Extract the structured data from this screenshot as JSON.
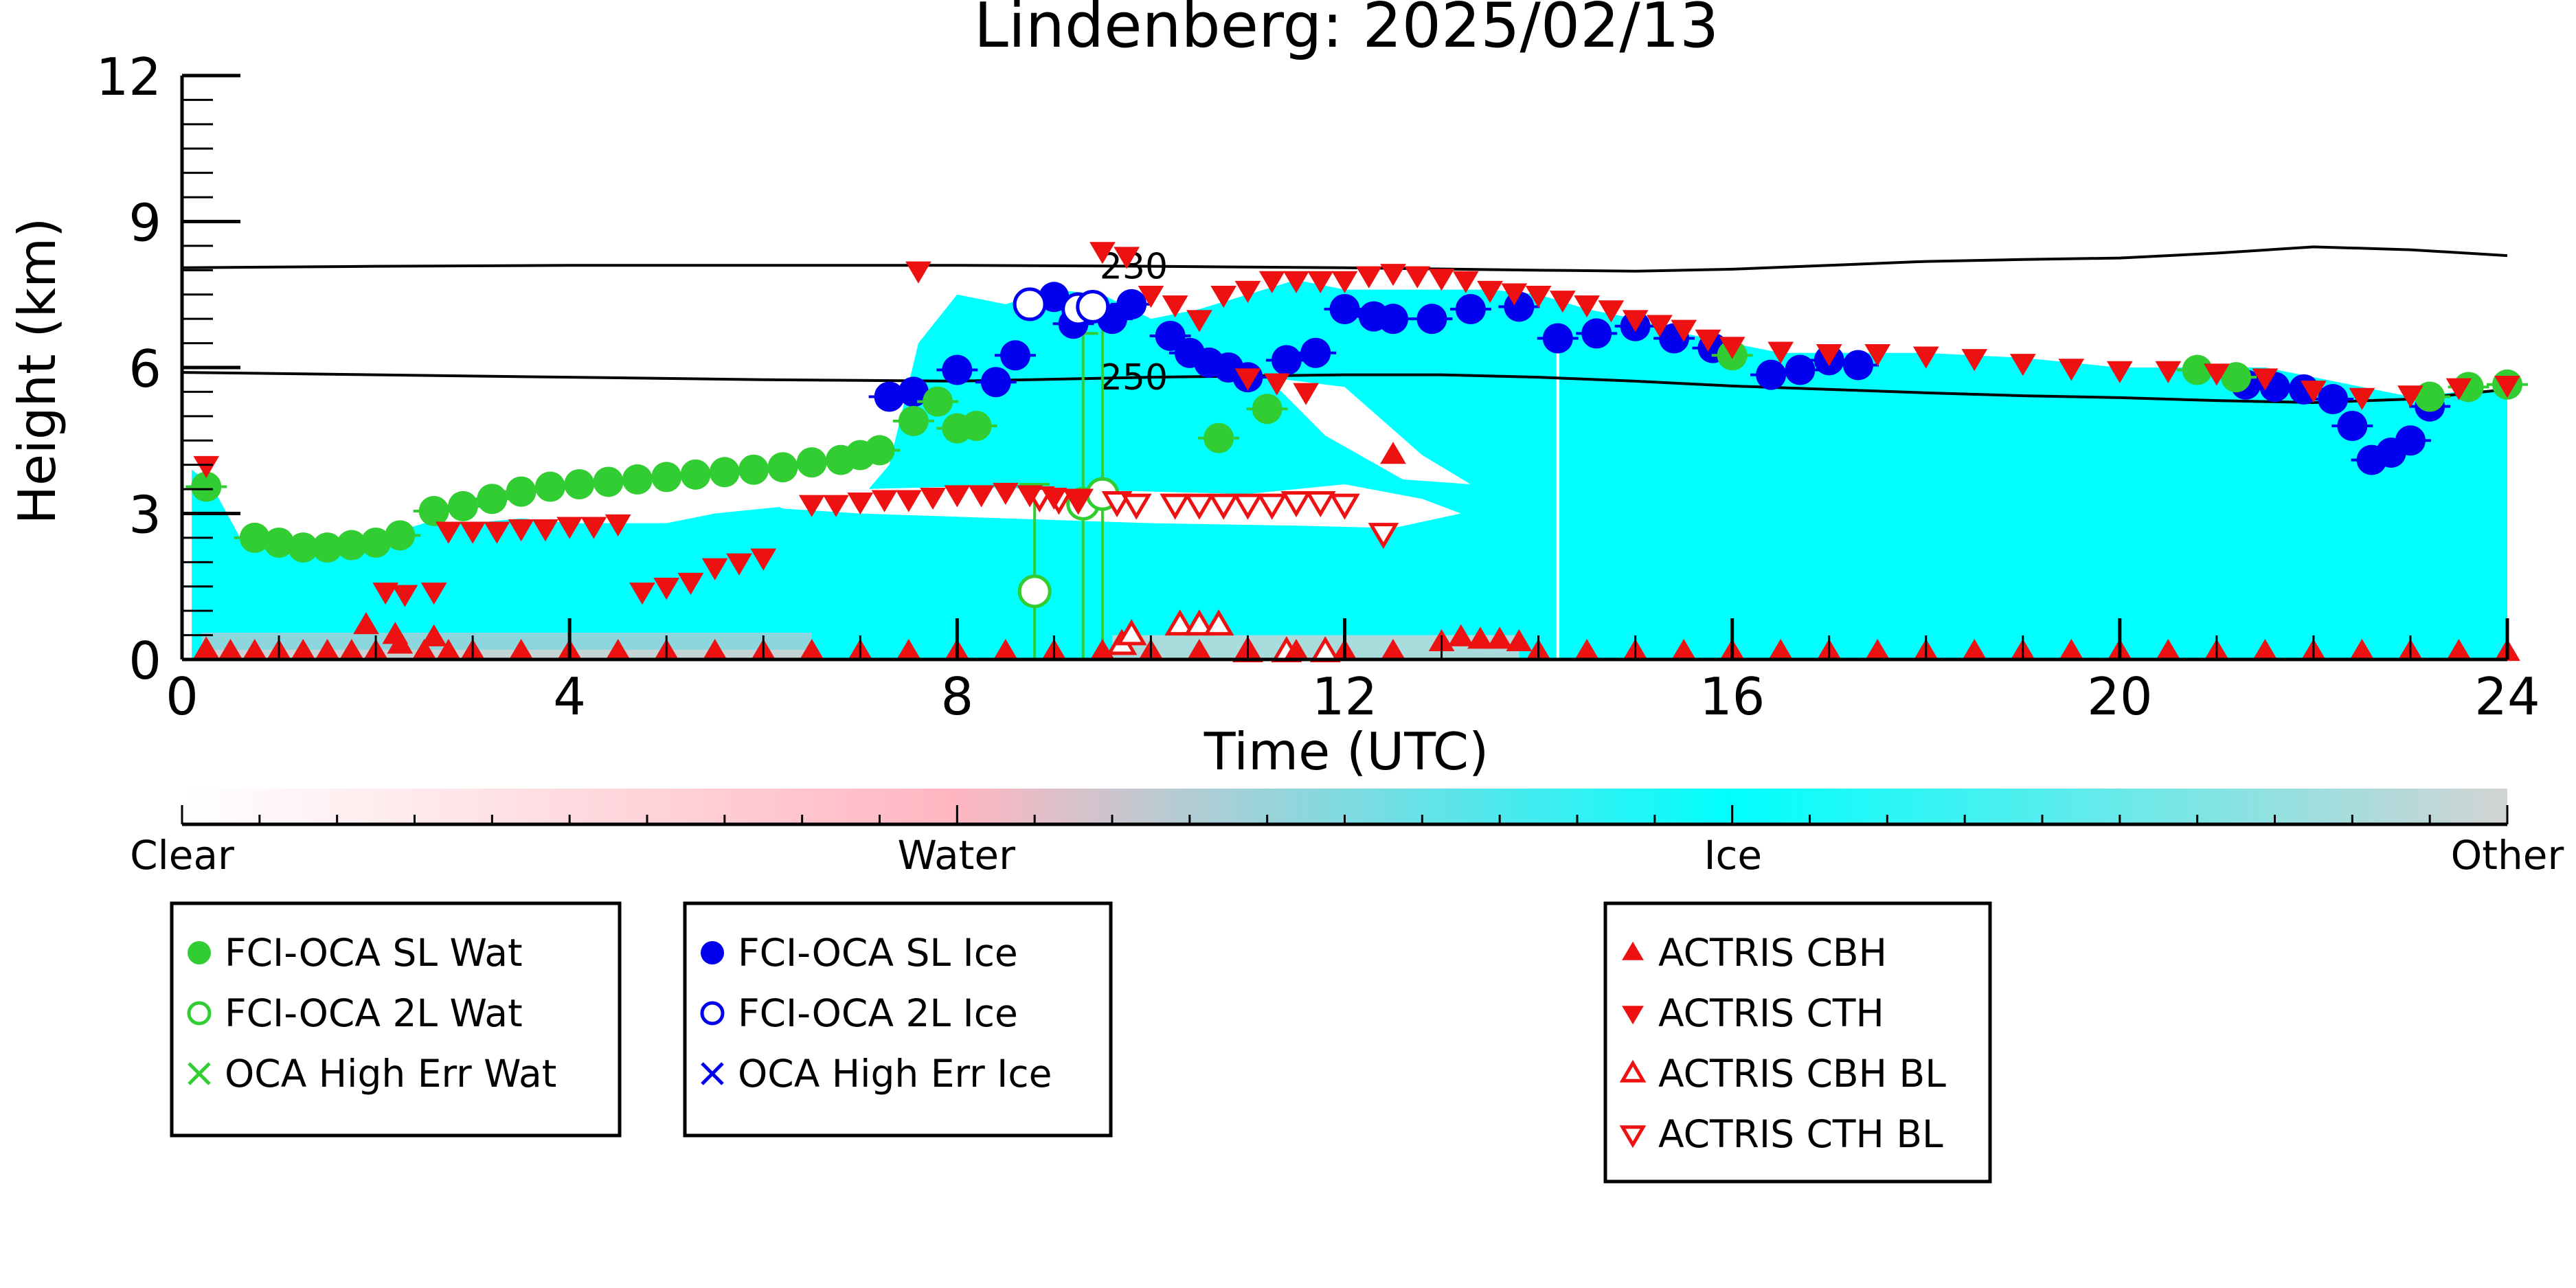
{
  "chart_data": {
    "type": "scatter",
    "title": "Lindenberg: 2025/02/13",
    "xlabel": "Time (UTC)",
    "ylabel": "Height (km)",
    "xlim": [
      0,
      24
    ],
    "ylim": [
      0,
      12
    ],
    "x_ticks": [
      0,
      4,
      8,
      12,
      16,
      20,
      24
    ],
    "y_ticks": [
      0,
      3,
      6,
      9,
      12
    ],
    "x_tick_labels": [
      "0",
      "4",
      "8",
      "12",
      "16",
      "20",
      "24"
    ],
    "y_tick_labels": [
      "0",
      "3",
      "6",
      "9",
      "12"
    ],
    "grid": false,
    "colors": {
      "sl_wat": "#32cd32",
      "sl_ice": "#0000ee",
      "actris": "#ee1111",
      "ice_phase": "#00ffff",
      "water_phase": "#ffb6c1",
      "other_phase": "#d3d3d3",
      "clear_phase": "#ffffff"
    },
    "contours": [
      {
        "label": "230",
        "label_x": 9.4,
        "x": [
          0,
          2,
          4,
          6,
          8,
          10,
          12,
          14,
          15,
          16,
          17,
          18,
          19,
          20,
          21,
          22,
          23,
          24
        ],
        "y": [
          8.05,
          8.08,
          8.1,
          8.1,
          8.1,
          8.08,
          8.05,
          8.0,
          7.98,
          8.02,
          8.1,
          8.18,
          8.22,
          8.25,
          8.35,
          8.48,
          8.42,
          8.3
        ]
      },
      {
        "label": "250",
        "label_x": 9.4,
        "x": [
          0,
          2,
          4,
          6,
          8,
          10,
          12,
          13,
          14,
          15,
          16,
          17,
          18,
          19,
          20,
          21,
          22,
          23,
          24
        ],
        "y": [
          5.9,
          5.85,
          5.8,
          5.75,
          5.72,
          5.8,
          5.85,
          5.85,
          5.8,
          5.72,
          5.62,
          5.55,
          5.48,
          5.42,
          5.38,
          5.32,
          5.28,
          5.35,
          5.55
        ]
      }
    ],
    "cloud_top_ice_km": {
      "x": [
        0.1,
        0.3,
        0.6,
        1.0,
        1.5,
        2.0,
        2.5,
        3.0,
        3.5,
        4.0,
        4.5,
        5.0,
        5.5,
        6.0,
        6.5,
        7.0,
        7.3,
        7.6,
        8.0,
        8.5,
        9.0,
        9.5,
        10.0,
        10.5,
        11.0,
        11.5,
        12.0,
        12.5,
        13.0,
        13.5,
        14.0,
        14.5,
        15.0,
        15.5,
        16.0,
        16.5,
        17.0,
        18.0,
        19.0,
        20.0,
        21.0,
        21.5,
        22.0,
        22.5,
        23.0,
        23.5,
        24.0
      ],
      "y": [
        3.9,
        3.6,
        2.5,
        2.4,
        2.4,
        2.5,
        2.8,
        2.8,
        2.9,
        2.8,
        2.8,
        2.8,
        3.0,
        3.1,
        3.2,
        3.3,
        4.0,
        6.5,
        7.5,
        7.3,
        7.6,
        7.5,
        7.0,
        7.2,
        7.5,
        7.8,
        7.6,
        7.6,
        7.6,
        7.6,
        7.5,
        7.2,
        7.0,
        6.7,
        6.5,
        6.3,
        6.3,
        6.3,
        6.2,
        6.0,
        6.0,
        6.0,
        5.8,
        5.6,
        5.4,
        5.5,
        5.5
      ]
    },
    "series": [
      {
        "name": "FCI-OCA SL Wat",
        "marker": "circle-filled",
        "color": "#32cd32",
        "x": [
          0.25,
          0.75,
          1.0,
          1.25,
          1.5,
          1.75,
          2.0,
          2.25,
          2.6,
          2.9,
          3.2,
          3.5,
          3.8,
          4.1,
          4.4,
          4.7,
          5.0,
          5.3,
          5.6,
          5.9,
          6.2,
          6.5,
          6.8,
          7.0,
          7.2,
          7.55,
          7.8,
          8.0,
          8.2,
          10.7,
          11.2,
          16.0,
          20.8,
          21.2,
          23.2,
          23.6,
          24.0
        ],
        "y": [
          3.55,
          2.5,
          2.4,
          2.3,
          2.3,
          2.35,
          2.4,
          2.55,
          3.05,
          3.15,
          3.3,
          3.45,
          3.55,
          3.6,
          3.65,
          3.7,
          3.75,
          3.8,
          3.85,
          3.9,
          3.95,
          4.05,
          4.1,
          4.2,
          4.3,
          4.9,
          5.3,
          4.75,
          4.8,
          4.55,
          5.15,
          6.25,
          5.95,
          5.8,
          5.4,
          5.6,
          5.65
        ]
      },
      {
        "name": "FCI-OCA 2L Wat",
        "marker": "circle-open",
        "color": "#32cd32",
        "x": [
          8.8,
          9.3,
          9.5
        ],
        "y": [
          1.4,
          3.2,
          3.4
        ]
      },
      {
        "name": "FCI-OCA SL Ice",
        "marker": "circle-filled",
        "color": "#0000ee",
        "x": [
          7.3,
          7.55,
          8.0,
          8.4,
          8.6,
          9.0,
          9.2,
          9.6,
          9.8,
          10.2,
          10.4,
          10.6,
          10.8,
          11.0,
          11.4,
          11.7,
          12.0,
          12.3,
          12.5,
          12.9,
          13.3,
          13.8,
          14.2,
          14.6,
          15.0,
          15.4,
          15.8,
          16.4,
          16.7,
          17.0,
          17.3,
          21.3,
          21.6,
          21.9,
          22.2,
          22.4,
          22.6,
          22.8,
          23.0,
          23.2
        ],
        "y": [
          5.4,
          5.5,
          5.95,
          5.7,
          6.25,
          7.45,
          6.9,
          7.0,
          7.3,
          6.65,
          6.3,
          6.1,
          6.0,
          5.8,
          6.15,
          6.3,
          7.2,
          7.05,
          7.0,
          7.0,
          7.2,
          7.25,
          6.6,
          6.7,
          6.85,
          6.6,
          6.4,
          5.85,
          5.95,
          6.15,
          6.05,
          5.65,
          5.6,
          5.55,
          5.35,
          4.8,
          4.1,
          4.25,
          4.5,
          5.2
        ]
      },
      {
        "name": "FCI-OCA 2L Ice",
        "marker": "circle-open",
        "color": "#0000ee",
        "x": [
          8.75,
          9.25,
          9.4
        ],
        "y": [
          7.3,
          7.2,
          7.25
        ]
      },
      {
        "name": "OCA High Err Wat",
        "marker": "x",
        "color": "#32cd32",
        "x": [],
        "y": []
      },
      {
        "name": "OCA High Err Ice",
        "marker": "x",
        "color": "#0000ee",
        "x": [],
        "y": []
      },
      {
        "name": "ACTRIS CBH",
        "marker": "triangle-up-filled",
        "color": "#ee1111",
        "x": [
          0.25,
          0.5,
          0.75,
          1.0,
          1.25,
          1.5,
          1.75,
          2.0,
          2.25,
          2.5,
          2.75,
          3.0,
          3.5,
          4.0,
          4.5,
          5.0,
          5.5,
          6.0,
          6.5,
          7.0,
          7.5,
          8.0,
          8.5,
          9.0,
          9.5,
          10.0,
          10.5,
          11.0,
          11.5,
          12.0,
          12.5,
          13.0,
          13.2,
          13.4,
          13.6,
          13.8,
          14.0,
          14.5,
          15.0,
          15.5,
          16.0,
          16.5,
          17.0,
          17.5,
          18.0,
          18.5,
          19.0,
          19.5,
          20.0,
          20.5,
          21.0,
          21.5,
          22.0,
          22.5,
          23.0,
          23.5,
          24.0,
          1.9,
          2.2,
          2.6,
          12.5
        ],
        "y": [
          0.2,
          0.15,
          0.15,
          0.15,
          0.15,
          0.15,
          0.15,
          0.15,
          0.3,
          0.15,
          0.15,
          0.15,
          0.15,
          0.15,
          0.15,
          0.15,
          0.15,
          0.15,
          0.15,
          0.15,
          0.15,
          0.15,
          0.15,
          0.15,
          0.15,
          0.15,
          0.15,
          0.15,
          0.15,
          0.15,
          0.15,
          0.35,
          0.45,
          0.4,
          0.4,
          0.35,
          0.15,
          0.15,
          0.15,
          0.15,
          0.15,
          0.15,
          0.15,
          0.15,
          0.15,
          0.15,
          0.15,
          0.15,
          0.15,
          0.15,
          0.15,
          0.15,
          0.15,
          0.15,
          0.15,
          0.15,
          0.15,
          0.7,
          0.5,
          0.45,
          4.2
        ]
      },
      {
        "name": "ACTRIS CTH",
        "marker": "triangle-down-filled",
        "color": "#ee1111",
        "x": [
          0.25,
          2.1,
          2.3,
          2.6,
          2.75,
          3.0,
          3.25,
          3.5,
          3.75,
          4.0,
          4.25,
          4.5,
          4.75,
          5.0,
          5.25,
          5.5,
          5.75,
          6.0,
          6.5,
          6.75,
          7.0,
          7.25,
          7.5,
          7.75,
          8.0,
          8.25,
          8.5,
          8.75,
          9.0,
          9.25,
          7.6,
          9.5,
          9.75,
          10.0,
          10.25,
          10.5,
          10.75,
          11.0,
          11.25,
          11.5,
          11.75,
          12.0,
          12.25,
          12.5,
          12.75,
          13.0,
          13.25,
          13.5,
          13.75,
          14.0,
          14.25,
          14.5,
          14.75,
          15.0,
          15.25,
          15.5,
          15.75,
          16.0,
          16.5,
          17.0,
          17.5,
          18.0,
          18.5,
          19.0,
          19.5,
          20.0,
          20.5,
          21.0,
          21.5,
          22.0,
          22.5,
          23.0,
          23.5,
          24.0,
          11.0,
          11.3,
          11.6
        ],
        "y": [
          4.0,
          1.4,
          1.35,
          1.4,
          2.65,
          2.65,
          2.65,
          2.7,
          2.7,
          2.75,
          2.75,
          2.8,
          1.4,
          1.5,
          1.6,
          1.9,
          2.0,
          2.1,
          3.2,
          3.2,
          3.25,
          3.3,
          3.3,
          3.35,
          3.4,
          3.4,
          3.45,
          3.4,
          3.35,
          3.3,
          8.0,
          8.4,
          8.3,
          7.5,
          7.3,
          7.0,
          7.5,
          7.6,
          7.8,
          7.8,
          7.8,
          7.8,
          7.9,
          7.95,
          7.9,
          7.85,
          7.8,
          7.6,
          7.55,
          7.5,
          7.4,
          7.3,
          7.2,
          7.0,
          6.9,
          6.8,
          6.6,
          6.45,
          6.35,
          6.3,
          6.3,
          6.25,
          6.2,
          6.1,
          6.0,
          5.95,
          5.95,
          5.9,
          5.8,
          5.55,
          5.4,
          5.45,
          5.6,
          5.65,
          5.8,
          5.7,
          5.5
        ]
      },
      {
        "name": "ACTRIS CBH BL",
        "marker": "triangle-up-open",
        "color": "#ee1111",
        "x": [
          9.7,
          9.8,
          10.3,
          10.5,
          10.7,
          11.0,
          11.4,
          11.8
        ],
        "y": [
          0.3,
          0.5,
          0.7,
          0.7,
          0.7,
          0.15,
          0.15,
          0.15
        ]
      },
      {
        "name": "ACTRIS CTH BL",
        "marker": "triangle-down-open",
        "color": "#ee1111",
        "x": [
          8.85,
          9.05,
          9.25,
          9.65,
          9.85,
          10.25,
          10.5,
          10.75,
          11.0,
          11.25,
          11.5,
          11.75,
          12.0,
          12.4
        ],
        "y": [
          3.35,
          3.3,
          3.3,
          3.25,
          3.2,
          3.2,
          3.2,
          3.2,
          3.2,
          3.2,
          3.25,
          3.25,
          3.2,
          2.6
        ]
      }
    ],
    "error_bars_wat": [
      {
        "x": 8.8,
        "lo": 0.0,
        "hi": 3.6
      },
      {
        "x": 9.3,
        "lo": 0.0,
        "hi": 6.7
      },
      {
        "x": 9.5,
        "lo": 0.0,
        "hi": 7.0
      }
    ],
    "colorbar": {
      "labels": [
        "Clear",
        "Water",
        "Ice",
        "Other"
      ],
      "stops": [
        0,
        0.333,
        0.667,
        1.0
      ]
    },
    "legends": [
      {
        "items": [
          {
            "label": "FCI-OCA SL Wat",
            "marker": "circle-filled",
            "color": "#32cd32"
          },
          {
            "label": "FCI-OCA 2L Wat",
            "marker": "circle-open",
            "color": "#32cd32"
          },
          {
            "label": "OCA High Err Wat",
            "marker": "x",
            "color": "#32cd32"
          }
        ]
      },
      {
        "items": [
          {
            "label": "FCI-OCA SL Ice",
            "marker": "circle-filled",
            "color": "#0000ee"
          },
          {
            "label": "FCI-OCA 2L Ice",
            "marker": "circle-open",
            "color": "#0000ee"
          },
          {
            "label": "OCA High Err Ice",
            "marker": "x",
            "color": "#0000ee"
          }
        ]
      },
      {
        "items": [
          {
            "label": "ACTRIS CBH",
            "marker": "triangle-up-filled",
            "color": "#ee1111"
          },
          {
            "label": "ACTRIS CTH",
            "marker": "triangle-down-filled",
            "color": "#ee1111"
          },
          {
            "label": "ACTRIS CBH BL",
            "marker": "triangle-up-open",
            "color": "#ee1111"
          },
          {
            "label": "ACTRIS CTH BL",
            "marker": "triangle-down-open",
            "color": "#ee1111"
          }
        ]
      }
    ]
  }
}
